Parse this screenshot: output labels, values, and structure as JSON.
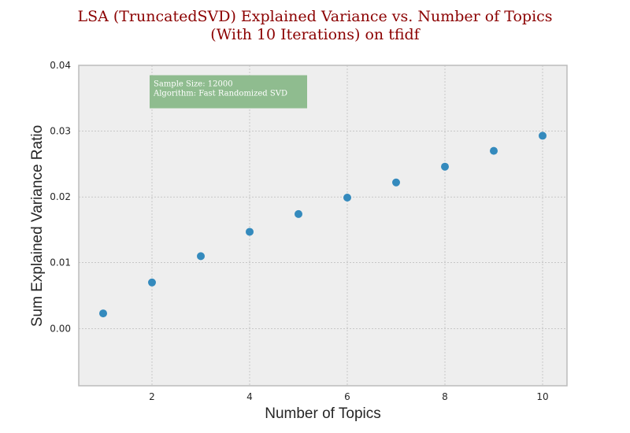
{
  "chart_data": {
    "type": "scatter",
    "title_line1": "LSA (TruncatedSVD) Explained Variance vs. Number of Topics",
    "title_line2": "(With 10 Iterations) on tfidf",
    "xlabel": "Number of Topics",
    "ylabel": "Sum Explained Variance Ratio",
    "x": [
      1,
      2,
      3,
      4,
      5,
      6,
      7,
      8,
      9,
      10
    ],
    "y": [
      0.0023,
      0.007,
      0.011,
      0.0147,
      0.0174,
      0.0199,
      0.0222,
      0.0246,
      0.027,
      0.0293
    ],
    "xlim": [
      0.5,
      10.5
    ],
    "ylim": [
      -0.0087,
      0.04
    ],
    "xticks": [
      2,
      4,
      6,
      8,
      10
    ],
    "yticks": [
      0.0,
      0.01,
      0.02,
      0.03,
      0.04
    ],
    "ytick_labels": [
      "0.00",
      "0.01",
      "0.02",
      "0.03",
      "0.04"
    ],
    "grid": true,
    "annotation": {
      "line1": "Sample Size: 12000",
      "line2": "Algorithm: Fast Randomized SVD",
      "anchor_x": 2,
      "anchor_y": 0.0385
    },
    "colors": {
      "title": "#8b0000",
      "marker": "#348abd",
      "plot_background": "#eeeeee",
      "annotation_background": "#8fbc8f",
      "grid": "#b0b0b0",
      "frame": "#bcbcbc"
    }
  }
}
